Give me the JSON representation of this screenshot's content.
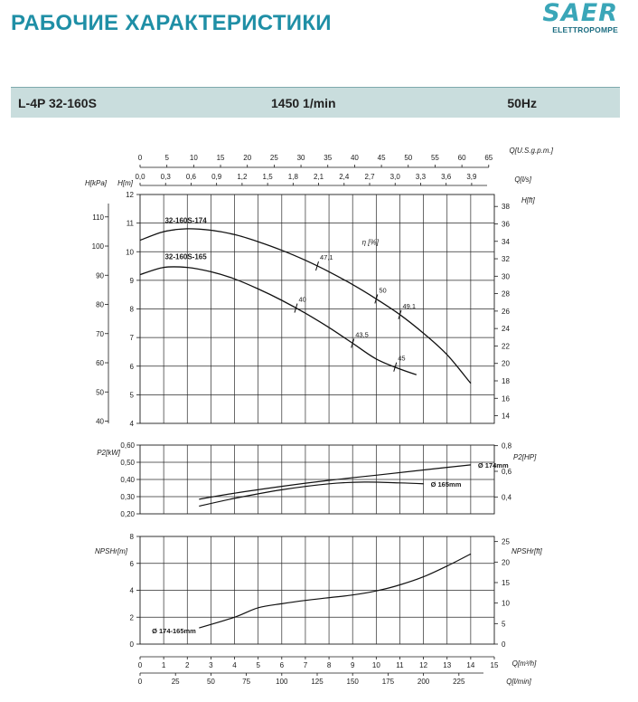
{
  "header": {
    "title": "РАБОЧИЕ ХАРАКТЕРИСТИКИ",
    "brand": "SAER",
    "brand_sub": "ELETTROPOMPE"
  },
  "band": {
    "model": "L-4P 32-160S",
    "speed": "1450 1/min",
    "frequency": "50Hz"
  },
  "colors": {
    "title": "#1f8fa6",
    "band": "#c9dddd",
    "curve": "#111111"
  },
  "chart_data": [
    {
      "type": "line",
      "panel": "head",
      "x_unit": "Q[m³/h]",
      "xlim": [
        0,
        15
      ],
      "top_axes": {
        "usgpm": {
          "label": "Q[U.S.g.p.m.]",
          "ticks": [
            "0",
            "5",
            "10",
            "15",
            "20",
            "25",
            "30",
            "35",
            "40",
            "45",
            "50",
            "55",
            "60",
            "65"
          ]
        },
        "ls": {
          "label": "Q[l/s]",
          "ticks": [
            "0,0",
            "0,3",
            "0,6",
            "0,9",
            "1,2",
            "1,5",
            "1,8",
            "2,1",
            "2,4",
            "2,7",
            "3,0",
            "3,3",
            "3,6",
            "3,9"
          ]
        }
      },
      "ylabel": "H[m]",
      "ylim": [
        4,
        12
      ],
      "y_ticks": [
        "4",
        "5",
        "6",
        "7",
        "8",
        "9",
        "10",
        "11",
        "12"
      ],
      "ylabel_kpa": "H[kPa]",
      "kpa_ticks": [
        "40",
        "50",
        "60",
        "70",
        "80",
        "90",
        "100",
        "110"
      ],
      "ylabel_right": "H[ft]",
      "ft_ticks": [
        "14",
        "16",
        "18",
        "20",
        "22",
        "24",
        "26",
        "28",
        "30",
        "32",
        "34",
        "36",
        "38"
      ],
      "efficiency_label": "η [%]",
      "series": [
        {
          "name": "32-160S-174",
          "x": [
            0,
            1,
            2,
            3,
            4,
            5,
            6,
            7,
            8,
            9,
            10,
            11,
            12,
            13,
            14
          ],
          "y": [
            10.4,
            10.7,
            10.8,
            10.75,
            10.6,
            10.35,
            10.05,
            9.7,
            9.3,
            8.85,
            8.35,
            7.8,
            7.15,
            6.4,
            5.4
          ]
        },
        {
          "name": "32-160S-165",
          "x": [
            0,
            1,
            2,
            3,
            4,
            5,
            6,
            7,
            8,
            9,
            10,
            11,
            11.7
          ],
          "y": [
            9.2,
            9.45,
            9.45,
            9.3,
            9.05,
            8.7,
            8.3,
            7.85,
            7.35,
            6.8,
            6.25,
            5.9,
            5.7
          ]
        }
      ],
      "efficiency_marks": [
        {
          "label": "40",
          "x": 6.6,
          "curve": 1
        },
        {
          "label": "47,1",
          "x": 7.5,
          "curve": 0
        },
        {
          "label": "43,5",
          "x": 9.0,
          "curve": 1
        },
        {
          "label": "50",
          "x": 10.0,
          "curve": 0
        },
        {
          "label": "45",
          "x": 10.8,
          "curve": 1
        },
        {
          "label": "49,1",
          "x": 11.0,
          "curve": 0
        }
      ]
    },
    {
      "type": "line",
      "panel": "power",
      "ylabel": "P2[kW]",
      "ylim": [
        0.2,
        0.6
      ],
      "y_ticks": [
        "0,20",
        "0,30",
        "0,40",
        "0,50",
        "0,60"
      ],
      "ylabel_right": "P2[HP]",
      "hp_ticks": [
        "0,4",
        "0,6",
        "0,8"
      ],
      "series": [
        {
          "name": "Ø 174mm",
          "x": [
            2.5,
            4,
            6,
            8,
            10,
            12,
            14
          ],
          "y": [
            0.285,
            0.32,
            0.36,
            0.395,
            0.425,
            0.455,
            0.485
          ]
        },
        {
          "name": "Ø 165mm",
          "x": [
            2.5,
            4,
            6,
            8,
            9.5,
            11,
            12
          ],
          "y": [
            0.245,
            0.29,
            0.34,
            0.375,
            0.385,
            0.38,
            0.375
          ]
        }
      ]
    },
    {
      "type": "line",
      "panel": "npsh",
      "ylabel": "NPSHr[m]",
      "ylim": [
        0,
        8
      ],
      "y_ticks": [
        "0",
        "2",
        "4",
        "6",
        "8"
      ],
      "ylabel_right": "NPSHr[ft]",
      "ft_ticks": [
        "0",
        "5",
        "10",
        "15",
        "20",
        "25"
      ],
      "x_ticks": [
        "0",
        "1",
        "2",
        "3",
        "4",
        "5",
        "6",
        "7",
        "8",
        "9",
        "10",
        "11",
        "12",
        "13",
        "14",
        "15"
      ],
      "xlabel": "Q[m³/h]",
      "lmin_label": "Q[l/min]",
      "lmin_ticks": [
        "0",
        "25",
        "50",
        "75",
        "100",
        "125",
        "150",
        "175",
        "200",
        "225"
      ],
      "series": [
        {
          "name": "Ø 174-165mm",
          "x": [
            2.5,
            4,
            5,
            6,
            7,
            8,
            9,
            10,
            11,
            12,
            13,
            14
          ],
          "y": [
            1.2,
            2.0,
            2.7,
            3.0,
            3.25,
            3.45,
            3.65,
            3.95,
            4.4,
            5.0,
            5.8,
            6.7
          ]
        }
      ]
    }
  ]
}
